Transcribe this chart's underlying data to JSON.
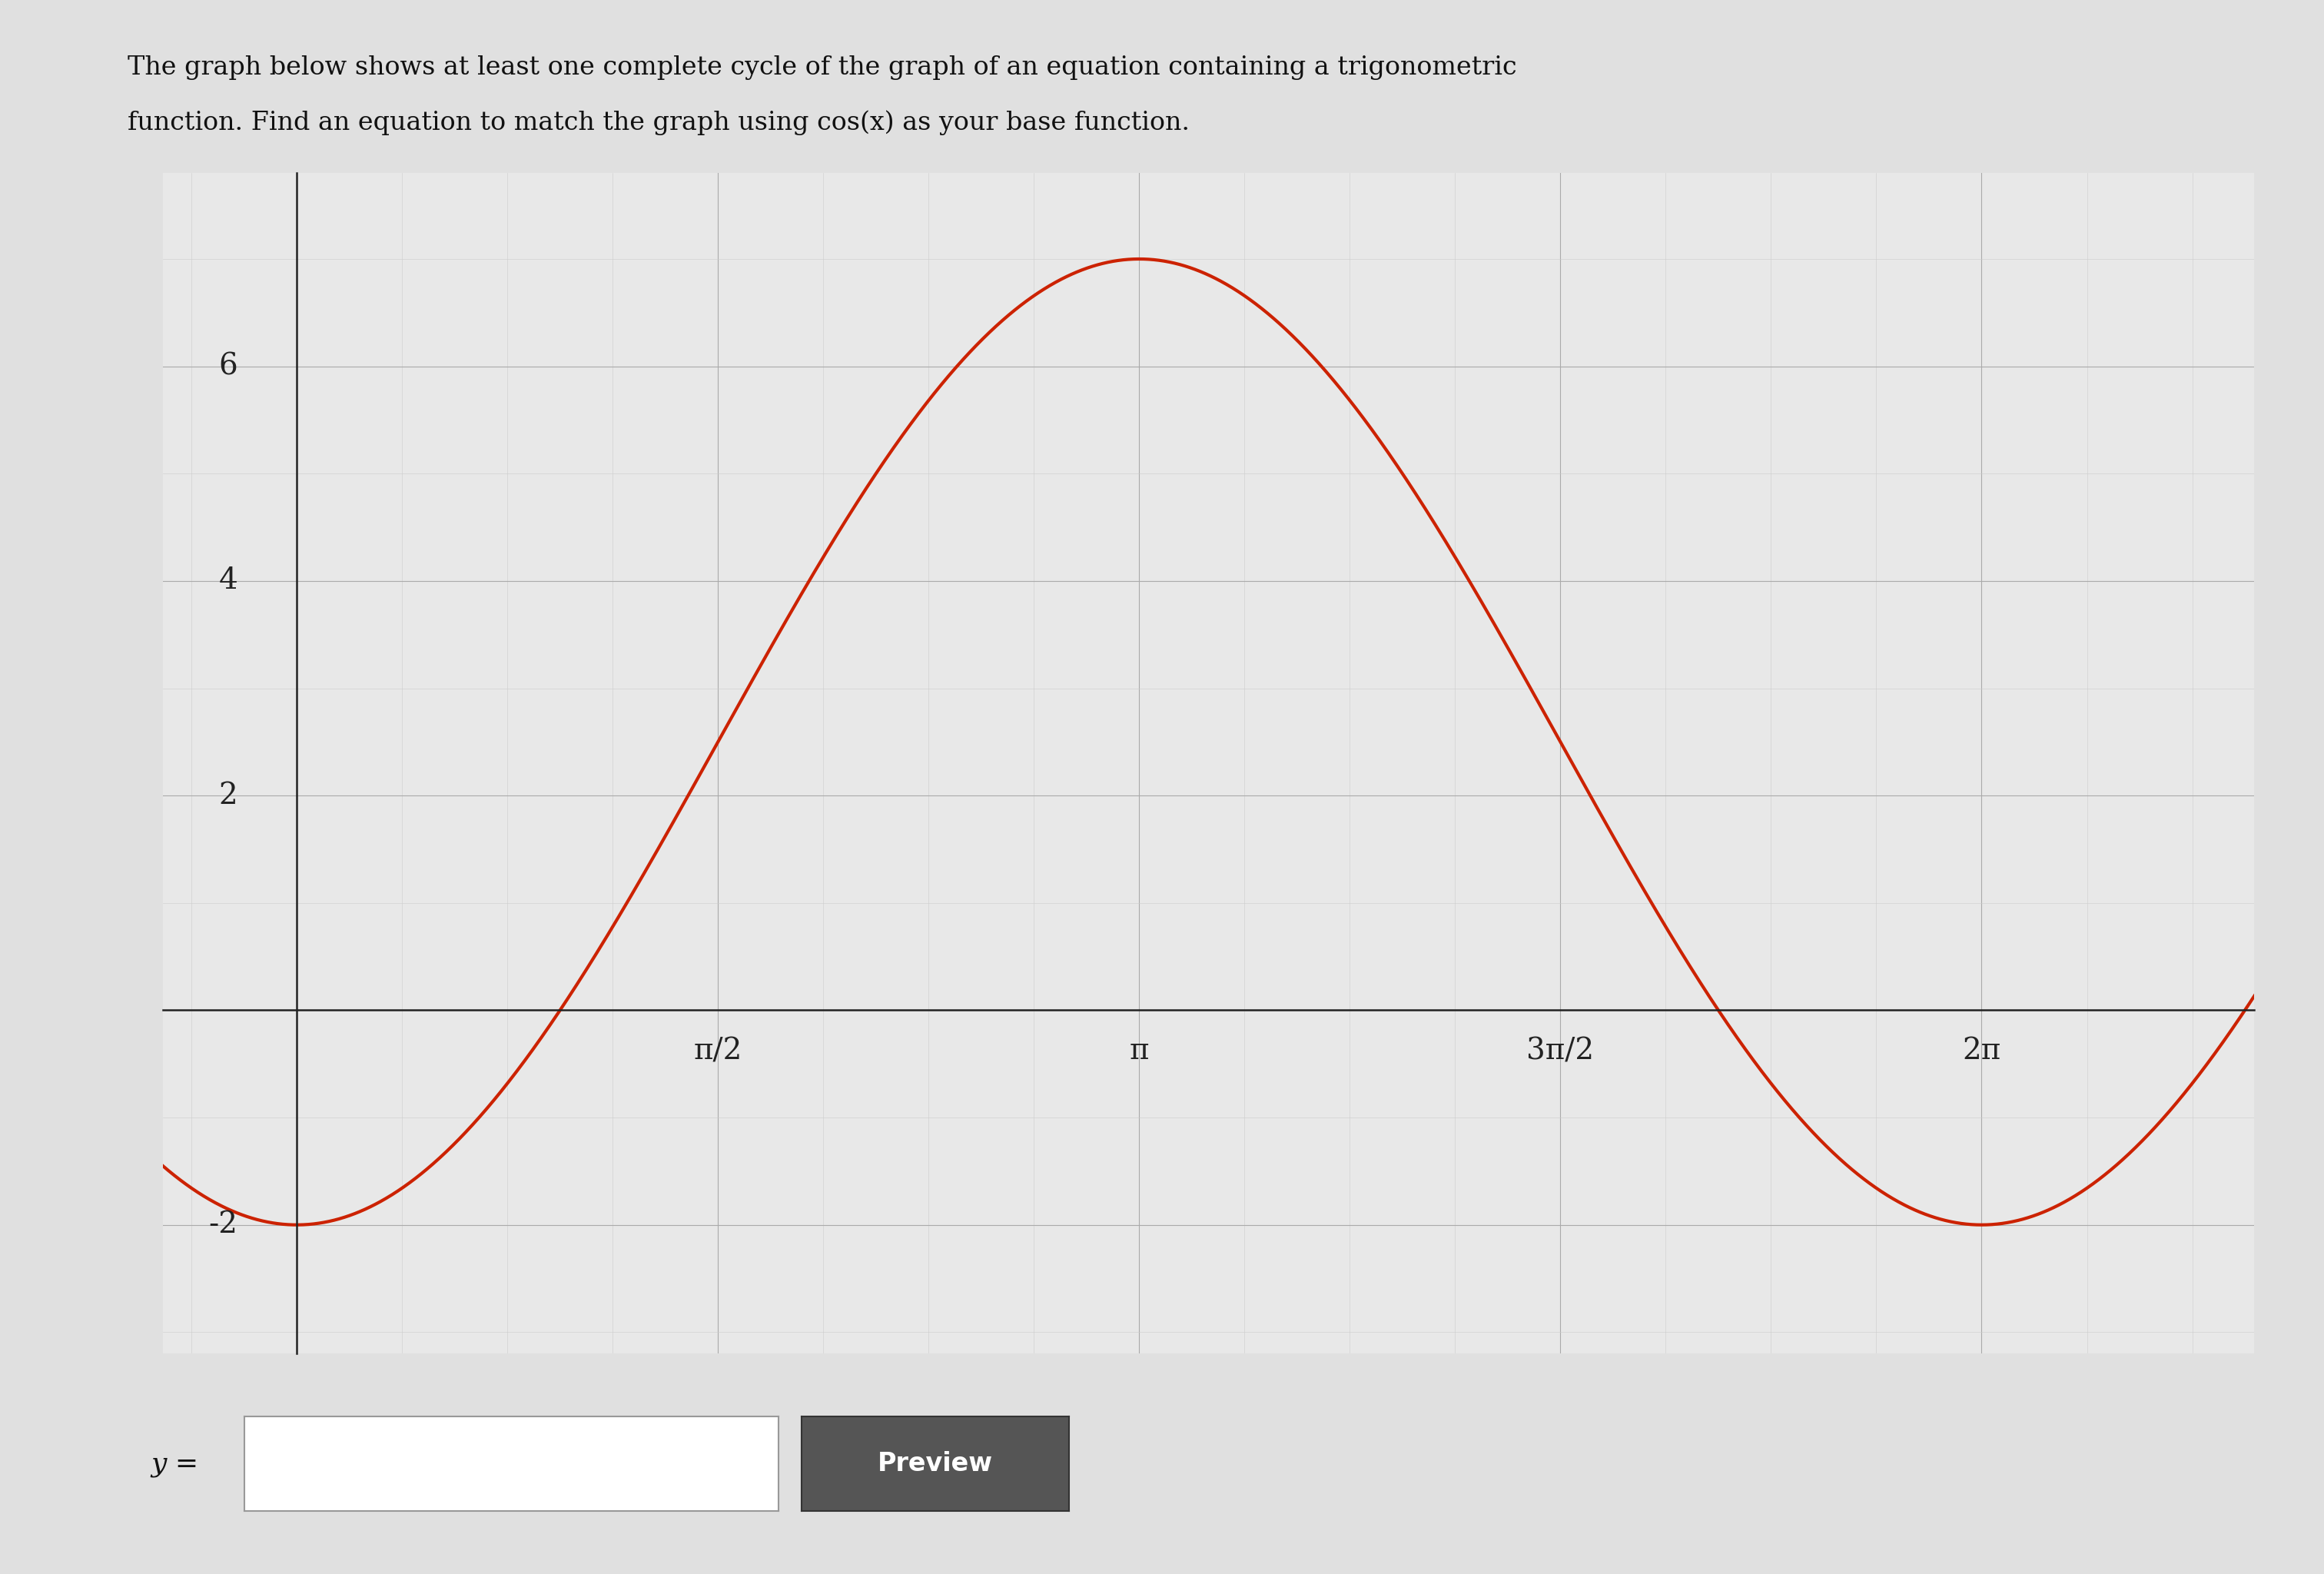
{
  "title_line1": "The graph below shows at least one complete cycle of the graph of an equation containing a trigonometric",
  "title_line2": "function. Find an equation to match the graph using cos(x) as your base function.",
  "amplitude": 4.5,
  "vertical_shift": 2.5,
  "phase_shift": 3.14159265358979,
  "x_min": -0.5,
  "x_max": 7.3,
  "y_min": -3.2,
  "y_max": 7.8,
  "ytick_vals": [
    -2,
    2,
    4,
    6
  ],
  "ytick_labels": [
    "-2",
    "2",
    "4",
    "6"
  ],
  "xtick_positions": [
    1.5707963267948966,
    3.141592653589793,
    4.71238898038469,
    6.283185307179586
  ],
  "xtick_labels": [
    "π/2",
    "π",
    "3π/2",
    "2π"
  ],
  "curve_color": "#cc2200",
  "curve_linewidth": 3.0,
  "grid_major_color": "#aaaaaa",
  "grid_minor_color": "#cccccc",
  "grid_major_lw": 0.8,
  "grid_minor_lw": 0.4,
  "plot_bg": "#e8e8e8",
  "page_bg": "#e0e0e0",
  "axes_linewidth": 1.8,
  "tick_fontsize": 28,
  "title_fontsize": 24,
  "ylabel_fontsize": 26,
  "button_color": "#555555",
  "button_text": "Preview"
}
